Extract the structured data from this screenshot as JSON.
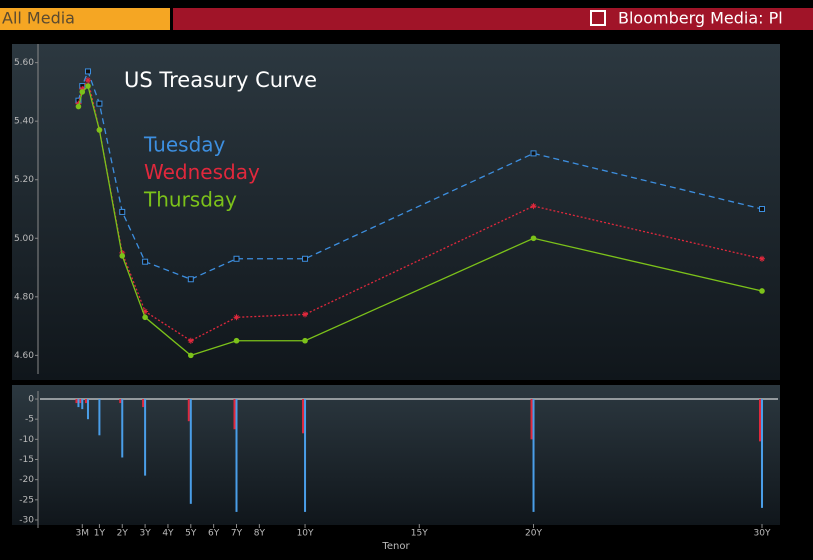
{
  "header": {
    "tab": "All Media",
    "link": "Bloomberg Media: Pl"
  },
  "chart_data": [
    {
      "type": "line",
      "title": "US Treasury Curve",
      "x": [
        0.083,
        0.25,
        0.5,
        1,
        2,
        3,
        5,
        7,
        10,
        20,
        30
      ],
      "xlim": [
        -1.6,
        30.7
      ],
      "ylim": [
        4.55,
        5.65
      ],
      "yticks": [
        {
          "value": 4.6,
          "label": "4.60"
        },
        {
          "value": 4.8,
          "label": "4.80"
        },
        {
          "value": 5.0,
          "label": "5.00"
        },
        {
          "value": 5.2,
          "label": "5.20"
        },
        {
          "value": 5.4,
          "label": "5.40"
        },
        {
          "value": 5.6,
          "label": "5.60"
        }
      ],
      "series": [
        {
          "name": "Tuesday",
          "color": "#3d8fe0",
          "line_style": "dashed",
          "marker": "square",
          "values": [
            5.47,
            5.52,
            5.57,
            5.46,
            5.09,
            4.92,
            4.86,
            4.93,
            4.93,
            5.29,
            5.1
          ]
        },
        {
          "name": "Wednesday",
          "color": "#e0283c",
          "line_style": "dotted",
          "marker": "star",
          "values": [
            5.46,
            5.51,
            5.54,
            5.37,
            4.95,
            4.75,
            4.65,
            4.73,
            4.74,
            5.11,
            4.93
          ]
        },
        {
          "name": "Thursday",
          "color": "#7cc21a",
          "line_style": "solid",
          "marker": "circle",
          "values": [
            5.45,
            5.5,
            5.52,
            5.37,
            4.94,
            4.73,
            4.6,
            4.65,
            4.65,
            5.0,
            4.82
          ]
        }
      ]
    },
    {
      "type": "bar",
      "x_label": "Tenor",
      "x": [
        0.083,
        0.25,
        0.5,
        1,
        2,
        3,
        5,
        7,
        10,
        20,
        30
      ],
      "xlim": [
        -1.6,
        30.7
      ],
      "xticks": [
        {
          "value": 0.25,
          "label": "3M"
        },
        {
          "value": 1,
          "label": "1Y"
        },
        {
          "value": 2,
          "label": "2Y"
        },
        {
          "value": 3,
          "label": "3Y"
        },
        {
          "value": 4,
          "label": "4Y"
        },
        {
          "value": 5,
          "label": "5Y"
        },
        {
          "value": 6,
          "label": "6Y"
        },
        {
          "value": 7,
          "label": "7Y"
        },
        {
          "value": 8,
          "label": "8Y"
        },
        {
          "value": 10,
          "label": "10Y"
        },
        {
          "value": 15,
          "label": "15Y"
        },
        {
          "value": 20,
          "label": "20Y"
        },
        {
          "value": 30,
          "label": "30Y"
        }
      ],
      "ylim": [
        -31,
        1
      ],
      "yticks": [
        0,
        -5,
        -10,
        -15,
        -20,
        -25,
        -30
      ],
      "series": [
        {
          "color": "#e0283c",
          "values": [
            -1,
            -1,
            -1,
            0,
            -1,
            -2,
            -5.5,
            -7.5,
            -8.5,
            -10,
            -10.5
          ]
        },
        {
          "color": "#4a9ee8",
          "values": [
            -2,
            -2.5,
            -5,
            -9,
            -14.5,
            -19,
            -26,
            -28,
            -28,
            -28,
            -27
          ]
        }
      ]
    }
  ]
}
